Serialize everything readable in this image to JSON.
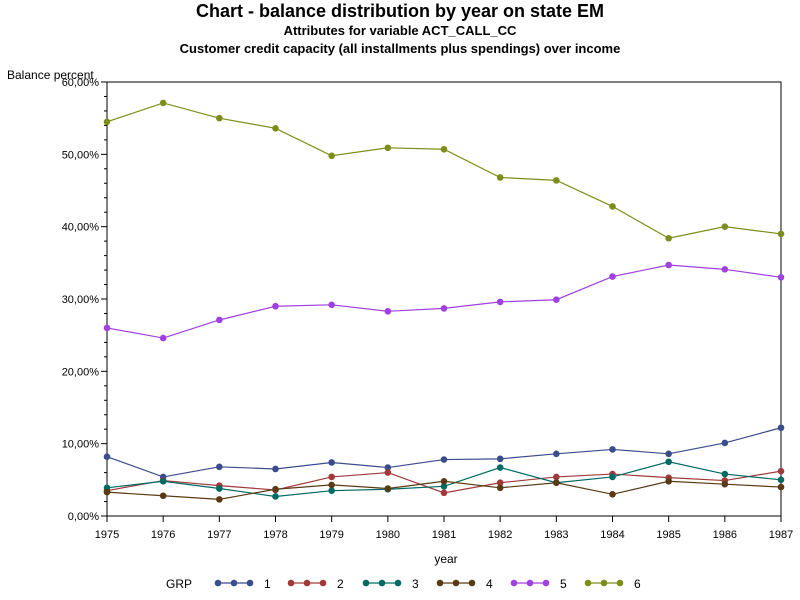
{
  "chart_data": {
    "type": "line",
    "title": "Chart - balance distribution by year on state EM",
    "subtitle": "Attributes for variable ACT_CALL_CC",
    "subtitle2": "Customer credit capacity (all installments plus spendings) over income",
    "xlabel": "year",
    "ylabel": "Balance percent",
    "ylim": [
      0,
      60
    ],
    "xlim": [
      1975,
      1987
    ],
    "x": [
      1975,
      1976,
      1977,
      1978,
      1979,
      1980,
      1981,
      1982,
      1983,
      1984,
      1985,
      1986,
      1987
    ],
    "y_ticks": [
      "0,00%",
      "10,00%",
      "20,00%",
      "30,00%",
      "40,00%",
      "50,00%",
      "60,00%"
    ],
    "y_tick_values": [
      0,
      10,
      20,
      30,
      40,
      50,
      60
    ],
    "legend_title": "GRP",
    "legend_position": "bottom",
    "grid": false,
    "series": [
      {
        "name": "1",
        "color": "#3B4C8C",
        "values": [
          8.2,
          5.4,
          6.8,
          6.5,
          7.4,
          6.7,
          7.8,
          7.9,
          8.6,
          9.2,
          8.6,
          10.1,
          12.2
        ]
      },
      {
        "name": "2",
        "color": "#A03A3A",
        "values": [
          3.5,
          4.9,
          4.2,
          3.6,
          5.4,
          6.0,
          3.2,
          4.6,
          5.4,
          5.8,
          5.3,
          4.9,
          6.2
        ]
      },
      {
        "name": "3",
        "color": "#006A63",
        "values": [
          3.9,
          4.8,
          3.8,
          2.7,
          3.5,
          3.7,
          4.1,
          6.7,
          4.6,
          5.4,
          7.5,
          5.8,
          5.0
        ]
      },
      {
        "name": "4",
        "color": "#5A3A14",
        "values": [
          3.3,
          2.8,
          2.3,
          3.7,
          4.3,
          3.8,
          4.8,
          3.9,
          4.6,
          3.0,
          4.8,
          4.4,
          4.0
        ]
      },
      {
        "name": "5",
        "color": "#A040E0",
        "values": [
          26.0,
          24.6,
          27.1,
          29.0,
          29.2,
          28.3,
          28.7,
          29.6,
          29.9,
          33.1,
          34.7,
          34.1,
          33.0
        ]
      },
      {
        "name": "6",
        "color": "#7E8C1A",
        "values": [
          54.5,
          57.1,
          55.0,
          53.6,
          49.8,
          50.9,
          50.7,
          46.8,
          46.4,
          42.8,
          38.4,
          40.0,
          39.0
        ]
      }
    ]
  }
}
